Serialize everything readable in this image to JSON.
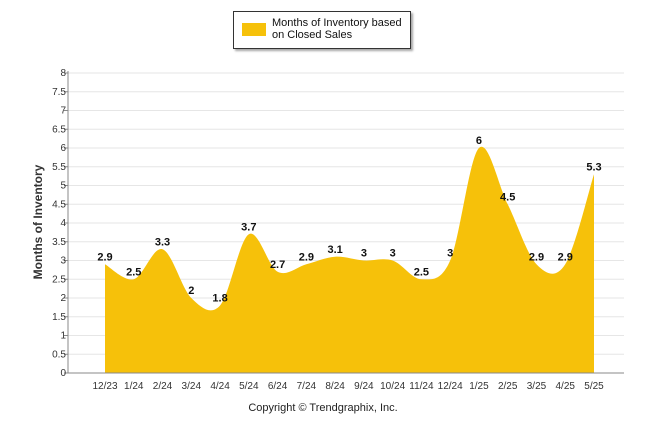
{
  "chart_data": {
    "type": "area",
    "title": "",
    "xlabel": "",
    "ylabel": "Months of Inventory",
    "ylim": [
      0,
      8
    ],
    "ytick_step": 0.5,
    "grid": true,
    "legend_position": "top-center",
    "categories": [
      "12/23",
      "1/24",
      "2/24",
      "3/24",
      "4/24",
      "5/24",
      "6/24",
      "7/24",
      "8/24",
      "9/24",
      "10/24",
      "11/24",
      "12/24",
      "1/25",
      "2/25",
      "3/25",
      "4/25",
      "5/25"
    ],
    "series": [
      {
        "name": "Months of Inventory based on Closed Sales",
        "color": "#f6c10a",
        "values": [
          2.9,
          2.5,
          3.3,
          2,
          1.8,
          3.7,
          2.7,
          2.9,
          3.1,
          3,
          3,
          2.5,
          3,
          6,
          4.5,
          2.9,
          2.9,
          5.3
        ]
      }
    ]
  },
  "legend": {
    "label": "Months of Inventory based on Closed Sales",
    "color": "#f6c10a"
  },
  "footer": {
    "copyright": "Copyright © Trendgraphix, Inc."
  }
}
